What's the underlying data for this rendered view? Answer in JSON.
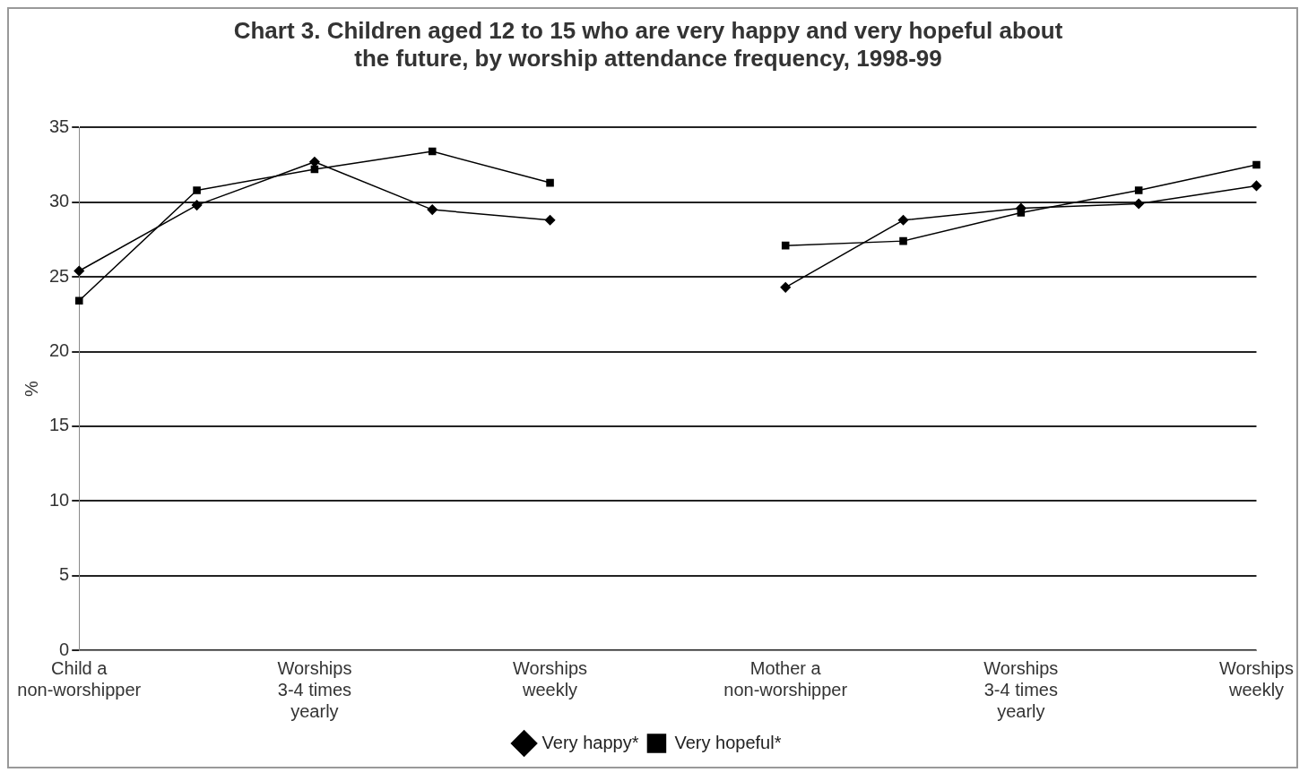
{
  "chart_data": {
    "type": "line",
    "title": "Chart 3. Children aged 12 to 15 who are very happy and very hopeful about the future, by worship attendance frequency, 1998-99",
    "ylabel": "%",
    "categories": [
      "Child a non-worshipper",
      null,
      "Worships 3-4 times yearly",
      null,
      "Worships weekly",
      null,
      "Mother a non-worshipper",
      null,
      "Worships 3-4 times yearly",
      null,
      "Worships weekly"
    ],
    "series": [
      {
        "name": "Very happy*",
        "color": "#000000",
        "marker": "diamond",
        "values": [
          25.4,
          29.8,
          32.7,
          29.5,
          28.8,
          null,
          24.3,
          28.8,
          29.6,
          29.9,
          31.1
        ]
      },
      {
        "name": "Very hopeful*",
        "color": "#000000",
        "marker": "square",
        "values": [
          23.4,
          30.8,
          32.2,
          33.4,
          31.3,
          null,
          27.1,
          27.4,
          29.3,
          30.8,
          32.5
        ]
      }
    ],
    "ylim": [
      0,
      35
    ],
    "yticks": [
      0,
      5,
      10,
      15,
      20,
      25,
      30,
      35
    ],
    "grid": "y",
    "legend": "bottom",
    "line_style": "solid"
  }
}
